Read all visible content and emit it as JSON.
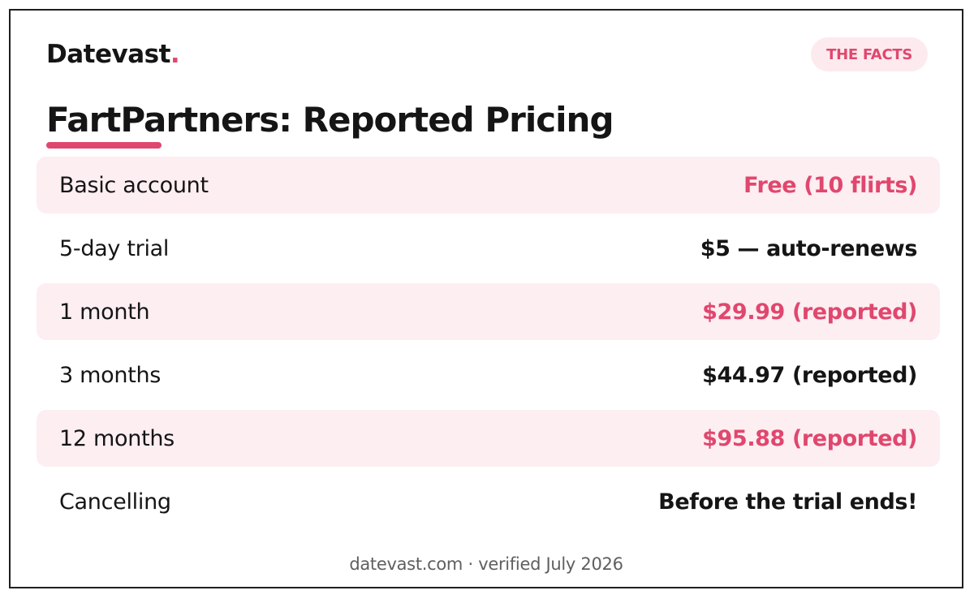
{
  "brand": {
    "name": "Datevast",
    "dot": "."
  },
  "badge": "THE FACTS",
  "title": "FartPartners: Reported Pricing",
  "rows": [
    {
      "label": "Basic account",
      "value": "Free (10 flirts)"
    },
    {
      "label": "5-day trial",
      "value": "$5 — auto-renews"
    },
    {
      "label": "1 month",
      "value": "$29.99 (reported)"
    },
    {
      "label": "3 months",
      "value": "$44.97 (reported)"
    },
    {
      "label": "12 months",
      "value": "$95.88 (reported)"
    },
    {
      "label": "Cancelling",
      "value": "Before the trial ends!"
    }
  ],
  "footer": "datevast.com · verified July 2026",
  "colors": {
    "accent": "#e0476e",
    "shade": "#fdeef1",
    "text": "#151515"
  }
}
